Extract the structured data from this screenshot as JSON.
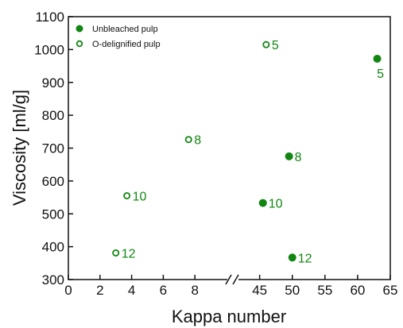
{
  "chart_data": {
    "type": "scatter",
    "title": "",
    "xlabel": "Kappa number",
    "ylabel": "Viscosity [ml/g]",
    "x_axis_break": true,
    "x_segments": [
      {
        "range": [
          0,
          10
        ],
        "ticks": [
          0,
          2,
          4,
          6,
          8
        ],
        "tick_labels": [
          "0",
          "2",
          "4",
          "6",
          "8"
        ]
      },
      {
        "range": [
          42,
          65
        ],
        "ticks": [
          45,
          50,
          55,
          60,
          65
        ],
        "tick_labels": [
          "45",
          "50",
          "55",
          "60",
          "65"
        ]
      }
    ],
    "ylim": [
      300,
      1100
    ],
    "y_ticks": [
      300,
      400,
      500,
      600,
      700,
      800,
      900,
      1000,
      1100
    ],
    "y_tick_labels": [
      "300",
      "400",
      "500",
      "600",
      "700",
      "800",
      "900",
      "1000",
      "1100"
    ],
    "legend_position": "top-left",
    "color": "#128612",
    "series": [
      {
        "name": "Unbleached pulp",
        "marker": "filled-circle",
        "points": [
          {
            "x": 63,
            "y": 972,
            "label": "5"
          },
          {
            "x": 49.5,
            "y": 675,
            "label": "8"
          },
          {
            "x": 45.5,
            "y": 533,
            "label": "10"
          },
          {
            "x": 50,
            "y": 367,
            "label": "12"
          }
        ]
      },
      {
        "name": "O-delignified pulp",
        "marker": "open-circle",
        "points": [
          {
            "x": 46,
            "y": 1015,
            "label": "5"
          },
          {
            "x": 7.6,
            "y": 726,
            "label": "8"
          },
          {
            "x": 3.7,
            "y": 555,
            "label": "10"
          },
          {
            "x": 3.0,
            "y": 381,
            "label": "12"
          }
        ]
      }
    ]
  }
}
